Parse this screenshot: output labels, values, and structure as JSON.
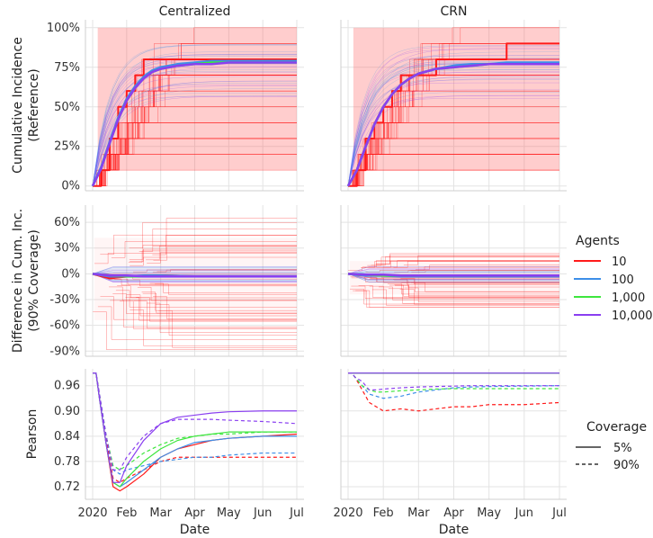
{
  "figure": {
    "column_titles": [
      "Centralized",
      "CRN"
    ],
    "legend_agents": {
      "title": "Agents",
      "entries": [
        {
          "label": "10",
          "color": "#ff1a1a"
        },
        {
          "label": "100",
          "color": "#3d8fe8"
        },
        {
          "label": "1,000",
          "color": "#3ee63e"
        },
        {
          "label": "10,000",
          "color": "#8a3ff0"
        }
      ]
    },
    "legend_coverage": {
      "title": "Coverage",
      "entries": [
        {
          "label": "5%",
          "dash": "solid"
        },
        {
          "label": "90%",
          "dash": "dashed"
        }
      ]
    },
    "shared_xlabel": "Date"
  },
  "chart_data": [
    {
      "type": "line",
      "row": "cumulative_incidence",
      "ylabel": [
        "Cumulative Incidence",
        "(Reference)"
      ],
      "x_ticks": [
        "2020",
        "Feb",
        "Mar",
        "Apr",
        "May",
        "Jun",
        "Jul"
      ],
      "x_months": [
        0,
        1,
        2,
        3,
        4,
        5,
        6
      ],
      "y_ticks": [
        "0%",
        "25%",
        "50%",
        "75%",
        "100%"
      ],
      "y_tick_values": [
        0,
        25,
        50,
        75,
        100
      ],
      "ylim": [
        -3,
        105
      ],
      "x": [
        0.0,
        0.25,
        0.5,
        0.75,
        1.0,
        1.25,
        1.5,
        1.75,
        2.0,
        2.5,
        3.0,
        3.5,
        4.0,
        4.5,
        5.0,
        5.5,
        6.0
      ],
      "band_90pct": {
        "lower": 10,
        "upper": 100
      },
      "panels": [
        {
          "title": "Centralized",
          "series": [
            {
              "name": "10 (reference run)",
              "values": [
                0,
                10,
                30,
                50,
                60,
                70,
                80,
                80,
                80,
                80,
                80,
                80,
                80,
                80,
                80,
                80,
                80
              ]
            },
            {
              "name": "100",
              "values": [
                0,
                12,
                28,
                43,
                55,
                63,
                69,
                73,
                75,
                77,
                78,
                79,
                79,
                79,
                79,
                79,
                79
              ]
            },
            {
              "name": "1,000",
              "values": [
                0,
                11,
                27,
                42,
                54,
                62,
                68,
                72,
                74,
                76,
                77,
                78,
                78,
                78,
                78,
                78,
                78
              ]
            },
            {
              "name": "10,000",
              "values": [
                0,
                11,
                27,
                42,
                54,
                62,
                68,
                72,
                74,
                76,
                77,
                77,
                78,
                78,
                78,
                78,
                78
              ]
            }
          ]
        },
        {
          "title": "CRN",
          "series": [
            {
              "name": "10 (reference run)",
              "values": [
                0,
                10,
                30,
                40,
                50,
                60,
                70,
                70,
                70,
                80,
                80,
                80,
                80,
                90,
                90,
                90,
                90
              ]
            },
            {
              "name": "100",
              "values": [
                0,
                10,
                25,
                39,
                50,
                58,
                64,
                68,
                71,
                74,
                76,
                77,
                77,
                78,
                78,
                78,
                78
              ]
            },
            {
              "name": "1,000",
              "values": [
                0,
                10,
                25,
                39,
                50,
                58,
                64,
                68,
                71,
                74,
                75,
                76,
                77,
                77,
                77,
                77,
                77
              ]
            },
            {
              "name": "10,000",
              "values": [
                0,
                10,
                25,
                39,
                50,
                58,
                64,
                68,
                71,
                74,
                75,
                76,
                77,
                77,
                77,
                77,
                77
              ]
            }
          ]
        }
      ]
    },
    {
      "type": "line",
      "row": "difference",
      "ylabel": [
        "Difference in Cum. Inc.",
        "(90% Coverage)"
      ],
      "x_ticks": [
        "2020",
        "Feb",
        "Mar",
        "Apr",
        "May",
        "Jun",
        "Jul"
      ],
      "x_months": [
        0,
        1,
        2,
        3,
        4,
        5,
        6
      ],
      "y_ticks": [
        "-90%",
        "-60%",
        "-30%",
        "0%",
        "30%",
        "60%"
      ],
      "y_tick_values": [
        -90,
        -60,
        -30,
        0,
        30,
        60
      ],
      "ylim": [
        -96,
        80
      ],
      "x": [
        0.0,
        0.5,
        1.0,
        1.5,
        2.0,
        3.0,
        4.0,
        5.0,
        6.0
      ],
      "panels": [
        {
          "title": "Centralized",
          "spread_range_10_agents": [
            -90,
            70
          ],
          "series": [
            {
              "name": "10",
              "values": [
                0,
                -5,
                -3,
                -3,
                -2,
                -3,
                -3,
                -3,
                -3
              ]
            },
            {
              "name": "100",
              "values": [
                0,
                -3,
                -3,
                -2,
                -2,
                -3,
                -3,
                -3,
                -3
              ]
            },
            {
              "name": "1,000",
              "values": [
                0,
                -2,
                -3,
                -3,
                -3,
                -3,
                -3,
                -3,
                -3
              ]
            },
            {
              "name": "10,000",
              "values": [
                0,
                -2,
                -2,
                -3,
                -3,
                -3,
                -3,
                -3,
                -3
              ]
            }
          ]
        },
        {
          "title": "CRN",
          "spread_range_10_agents": [
            -40,
            25
          ],
          "series": [
            {
              "name": "10",
              "values": [
                0,
                -2,
                -2,
                -2,
                -3,
                -3,
                -3,
                -3,
                -3
              ]
            },
            {
              "name": "100",
              "values": [
                0,
                -2,
                -2,
                -3,
                -3,
                -3,
                -3,
                -3,
                -3
              ]
            },
            {
              "name": "1,000",
              "values": [
                0,
                -1,
                -2,
                -2,
                -2,
                -2,
                -2,
                -2,
                -2
              ]
            },
            {
              "name": "10,000",
              "values": [
                0,
                -1,
                -1,
                -2,
                -2,
                -2,
                -2,
                -2,
                -2
              ]
            }
          ]
        }
      ]
    },
    {
      "type": "line",
      "row": "pearson",
      "ylabel": [
        "Pearson"
      ],
      "x_ticks": [
        "2020",
        "Feb",
        "Mar",
        "Apr",
        "May",
        "Jun",
        "Jul"
      ],
      "x_months": [
        0,
        1,
        2,
        3,
        4,
        5,
        6
      ],
      "y_ticks": [
        "0.72",
        "0.78",
        "0.84",
        "0.90",
        "0.96"
      ],
      "y_tick_values": [
        0.72,
        0.78,
        0.84,
        0.9,
        0.96
      ],
      "ylim": [
        0.69,
        1.0
      ],
      "x": [
        0.0,
        0.1,
        0.2,
        0.4,
        0.6,
        0.8,
        1.0,
        1.5,
        2.0,
        2.5,
        3.0,
        3.5,
        4.0,
        5.0,
        6.0
      ],
      "panels": [
        {
          "title": "Centralized",
          "series": [
            {
              "name": "10",
              "coverage": "5%",
              "values": [
                0.99,
                0.99,
                0.93,
                0.82,
                0.72,
                0.71,
                0.72,
                0.75,
                0.79,
                0.81,
                0.82,
                0.83,
                0.835,
                0.84,
                0.845
              ]
            },
            {
              "name": "10",
              "coverage": "90%",
              "values": [
                0.99,
                0.99,
                0.94,
                0.83,
                0.74,
                0.73,
                0.74,
                0.76,
                0.78,
                0.79,
                0.79,
                0.79,
                0.79,
                0.79,
                0.79
              ]
            },
            {
              "name": "100",
              "coverage": "5%",
              "values": [
                0.99,
                0.99,
                0.93,
                0.82,
                0.73,
                0.72,
                0.73,
                0.76,
                0.79,
                0.81,
                0.825,
                0.83,
                0.835,
                0.84,
                0.84
              ]
            },
            {
              "name": "100",
              "coverage": "90%",
              "values": [
                0.99,
                0.99,
                0.94,
                0.84,
                0.76,
                0.75,
                0.76,
                0.77,
                0.78,
                0.785,
                0.79,
                0.79,
                0.795,
                0.8,
                0.8
              ]
            },
            {
              "name": "1,000",
              "coverage": "5%",
              "values": [
                0.99,
                0.99,
                0.93,
                0.82,
                0.73,
                0.72,
                0.74,
                0.78,
                0.81,
                0.83,
                0.84,
                0.845,
                0.85,
                0.85,
                0.85
              ]
            },
            {
              "name": "1,000",
              "coverage": "90%",
              "values": [
                0.99,
                0.99,
                0.94,
                0.84,
                0.77,
                0.76,
                0.77,
                0.8,
                0.82,
                0.835,
                0.84,
                0.845,
                0.845,
                0.85,
                0.85
              ]
            },
            {
              "name": "10,000",
              "coverage": "5%",
              "values": [
                0.99,
                0.99,
                0.93,
                0.82,
                0.73,
                0.73,
                0.77,
                0.83,
                0.87,
                0.885,
                0.89,
                0.895,
                0.898,
                0.9,
                0.9
              ]
            },
            {
              "name": "10,000",
              "coverage": "90%",
              "values": [
                0.99,
                0.99,
                0.94,
                0.84,
                0.76,
                0.76,
                0.79,
                0.84,
                0.87,
                0.88,
                0.88,
                0.88,
                0.878,
                0.875,
                0.87
              ]
            }
          ]
        },
        {
          "title": "CRN",
          "series": [
            {
              "name": "10",
              "coverage": "5%",
              "values": [
                0.99,
                0.99,
                0.99,
                0.99,
                0.99,
                0.99,
                0.99,
                0.99,
                0.99,
                0.99,
                0.99,
                0.99,
                0.99,
                0.99,
                0.99
              ]
            },
            {
              "name": "10",
              "coverage": "90%",
              "values": [
                0.99,
                0.99,
                0.98,
                0.95,
                0.92,
                0.91,
                0.9,
                0.905,
                0.9,
                0.905,
                0.91,
                0.91,
                0.915,
                0.915,
                0.92
              ]
            },
            {
              "name": "100",
              "coverage": "5%",
              "values": [
                0.99,
                0.99,
                0.99,
                0.99,
                0.99,
                0.99,
                0.99,
                0.99,
                0.99,
                0.99,
                0.99,
                0.99,
                0.99,
                0.99,
                0.99
              ]
            },
            {
              "name": "100",
              "coverage": "90%",
              "values": [
                0.99,
                0.99,
                0.98,
                0.96,
                0.94,
                0.935,
                0.93,
                0.935,
                0.945,
                0.95,
                0.955,
                0.957,
                0.958,
                0.959,
                0.96
              ]
            },
            {
              "name": "1,000",
              "coverage": "5%",
              "values": [
                0.99,
                0.99,
                0.99,
                0.99,
                0.99,
                0.99,
                0.99,
                0.99,
                0.99,
                0.99,
                0.99,
                0.99,
                0.99,
                0.99,
                0.99
              ]
            },
            {
              "name": "1,000",
              "coverage": "90%",
              "values": [
                0.99,
                0.99,
                0.98,
                0.96,
                0.95,
                0.945,
                0.945,
                0.948,
                0.95,
                0.952,
                0.953,
                0.953,
                0.953,
                0.953,
                0.953
              ]
            },
            {
              "name": "10,000",
              "coverage": "5%",
              "values": [
                0.99,
                0.99,
                0.99,
                0.99,
                0.99,
                0.99,
                0.99,
                0.99,
                0.99,
                0.99,
                0.99,
                0.99,
                0.99,
                0.99,
                0.99
              ]
            },
            {
              "name": "10,000",
              "coverage": "90%",
              "values": [
                0.99,
                0.99,
                0.98,
                0.97,
                0.95,
                0.95,
                0.952,
                0.955,
                0.957,
                0.958,
                0.959,
                0.96,
                0.96,
                0.96,
                0.96
              ]
            }
          ]
        }
      ]
    }
  ]
}
